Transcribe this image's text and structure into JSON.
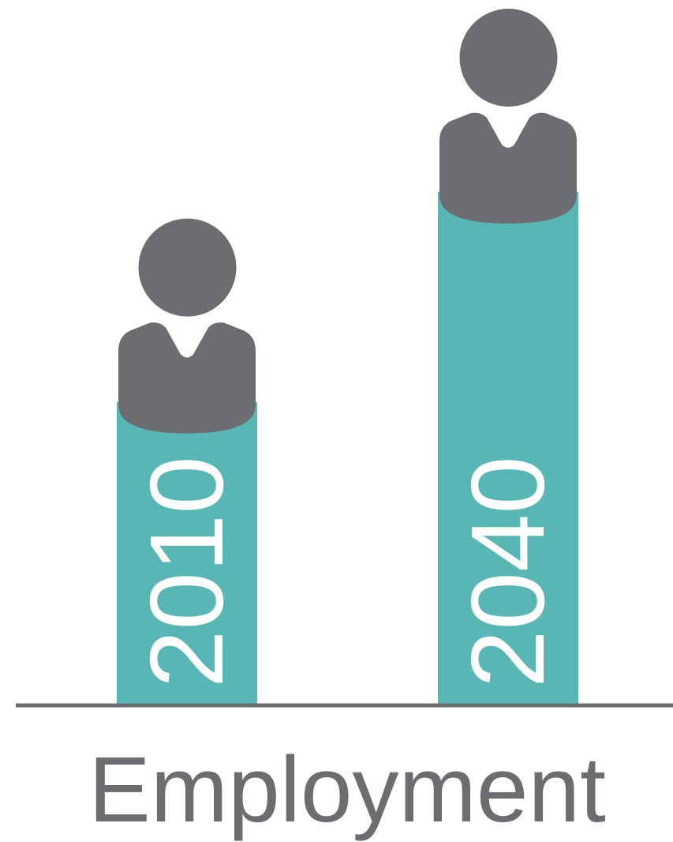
{
  "chart_data": {
    "type": "bar",
    "title": "Employment",
    "categories": [
      "2010",
      "2040"
    ],
    "values": [
      {
        "category": "2010",
        "label": "2010"
      },
      {
        "category": "2040",
        "label": "2040"
      }
    ],
    "bar_heights_relative": [
      0.59,
      1.0
    ],
    "grid": false,
    "legend": "none"
  },
  "colors": {
    "bar": "#58b6b4",
    "person_icon": "#6c6d70",
    "baseline": "#6c6d70",
    "title": "#6c6d70",
    "bar_label": "#ffffff"
  },
  "icons": [
    "person-icon"
  ]
}
